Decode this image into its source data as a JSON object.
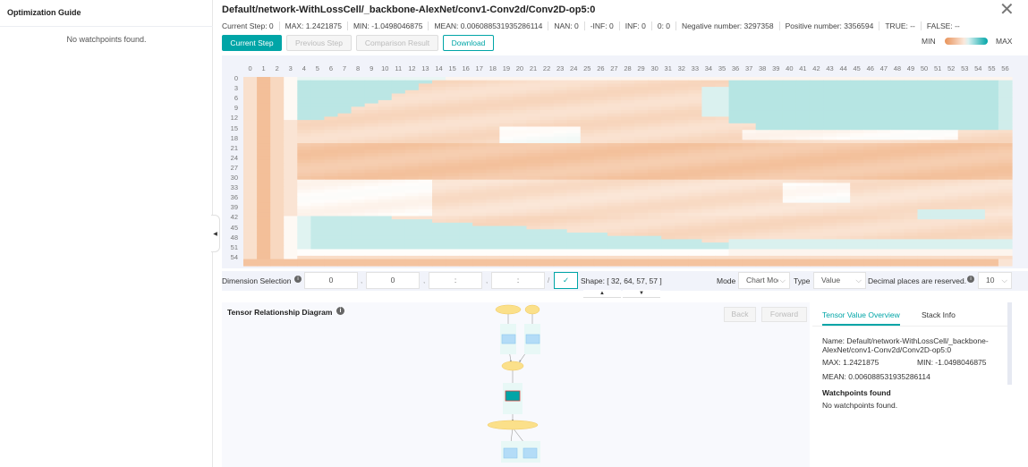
{
  "sidebar": {
    "title": "Optimization Guide",
    "empty": "No watchpoints found.",
    "collapse_icon": "caret-left"
  },
  "header": {
    "title": "Default/network-WithLossCell/_backbone-AlexNet/conv1-Conv2d/Conv2D-op5:0",
    "stats": [
      "Current Step:   0",
      "MAX: 1.2421875",
      "MIN: -1.0498046875",
      "MEAN: 0.006088531935286114",
      "NAN: 0",
      "-INF: 0",
      "INF: 0",
      "0: 0",
      "Negative number: 3297358",
      "Positive number: 3356594",
      "TRUE: --",
      "FALSE: --"
    ],
    "buttons": {
      "current": "Current Step",
      "previous": "Previous Step",
      "comparison": "Comparison Result",
      "download": "Download"
    },
    "legend": {
      "min": "MIN",
      "max": "MAX",
      "min_color": "#e8935a",
      "max_color": "#00a5a7"
    }
  },
  "chart_data": {
    "type": "heatmap",
    "x_range": [
      0,
      56
    ],
    "y_range": [
      0,
      56
    ],
    "x_ticks": [
      "0",
      "1",
      "2",
      "3",
      "4",
      "5",
      "6",
      "7",
      "8",
      "9",
      "10",
      "11",
      "12",
      "13",
      "14",
      "15",
      "16",
      "17",
      "18",
      "19",
      "20",
      "21",
      "22",
      "23",
      "24",
      "25",
      "26",
      "27",
      "28",
      "29",
      "30",
      "31",
      "32",
      "33",
      "34",
      "35",
      "36",
      "37",
      "38",
      "39",
      "40",
      "41",
      "42",
      "43",
      "44",
      "45",
      "46",
      "47",
      "48",
      "49",
      "50",
      "51",
      "52",
      "53",
      "54",
      "55",
      "56"
    ],
    "y_ticks": [
      "0",
      "3",
      "6",
      "9",
      "12",
      "15",
      "18",
      "21",
      "24",
      "27",
      "30",
      "33",
      "36",
      "39",
      "42",
      "45",
      "48",
      "51",
      "54"
    ],
    "value_range": [
      -1.0498046875,
      1.2421875
    ]
  },
  "controls": {
    "dimension_label": "Dimension Selection",
    "dims": [
      "0",
      "0",
      ":",
      ":"
    ],
    "confirm_icon": "check",
    "shape": "Shape: [ 32, 64, 57, 57 ]",
    "mode_label": "Mode",
    "mode_value": "Chart Mode",
    "type_label": "Type",
    "type_value": "Value",
    "decimal_label": "Decimal places are reserved.",
    "decimal_value": "10"
  },
  "diagram": {
    "title": "Tensor Relationship Diagram",
    "back": "Back",
    "forward": "Forward"
  },
  "right_panel": {
    "tabs": [
      "Tensor Value Overview",
      "Stack Info"
    ],
    "name": "Name: Default/network-WithLossCell/_backbone-AlexNet/conv1-Conv2d/Conv2D-op5:0",
    "max": "MAX: 1.2421875",
    "min": "MIN: -1.0498046875",
    "mean": "MEAN: 0.006088531935286114",
    "watch_title": "Watchpoints found",
    "watch_empty": "No watchpoints found."
  }
}
